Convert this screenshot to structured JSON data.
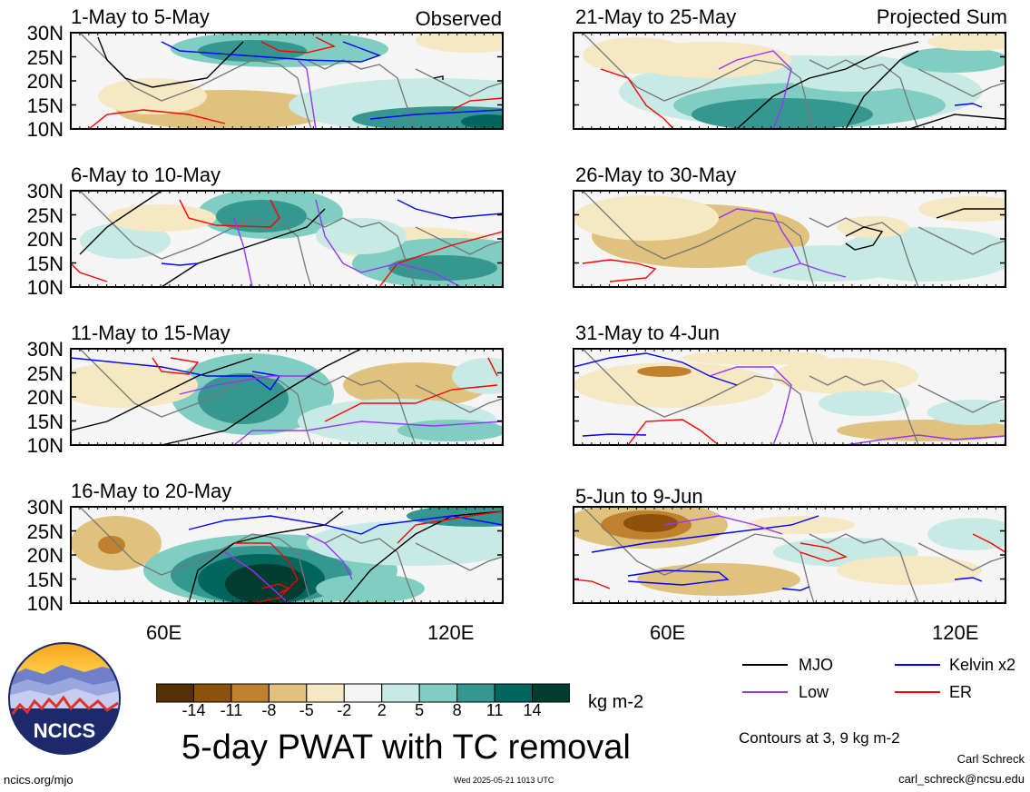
{
  "panels": [
    {
      "title": "1-May to 5-May",
      "tag": "Observed"
    },
    {
      "title": "6-May to 10-May",
      "tag": ""
    },
    {
      "title": "11-May to 15-May",
      "tag": ""
    },
    {
      "title": "16-May to 20-May",
      "tag": ""
    },
    {
      "title": "21-May to 25-May",
      "tag": "Projected Sum"
    },
    {
      "title": "26-May to 30-May",
      "tag": ""
    },
    {
      "title": "31-May to 4-Jun",
      "tag": ""
    },
    {
      "title": "5-Jun to 9-Jun",
      "tag": ""
    }
  ],
  "lat_labels": [
    "30N",
    "25N",
    "20N",
    "15N",
    "10N"
  ],
  "lon_labels": [
    "60E",
    "120E"
  ],
  "colorbar": {
    "labels": [
      "-14",
      "-11",
      "-8",
      "-5",
      "-2",
      "2",
      "5",
      "8",
      "11",
      "14"
    ],
    "colors": [
      "#543005",
      "#8c510a",
      "#bf812d",
      "#dfc27d",
      "#f6e8c3",
      "#f5f5f5",
      "#c7eae5",
      "#80cdc1",
      "#35978f",
      "#01665e",
      "#003c30"
    ],
    "units": "kg m-2"
  },
  "legend": {
    "mjo": "MJO",
    "kelvin": "Kelvin x2",
    "low": "Low",
    "er": "ER",
    "colors": {
      "mjo": "#000000",
      "kelvin": "#0000ff",
      "low": "#9933ff",
      "er": "#ff0000"
    }
  },
  "title": "5-day PWAT with TC removal",
  "contours_note": "Contours at 3, 9 kg m-2",
  "logo_text": "NCICS",
  "footer": {
    "url": "ncics.org/mjo",
    "timestamp": "Wed 2025-05-21 1013 UTC",
    "author": "Carl Schreck",
    "email": "carl_schreck@ncsu.edu"
  }
}
